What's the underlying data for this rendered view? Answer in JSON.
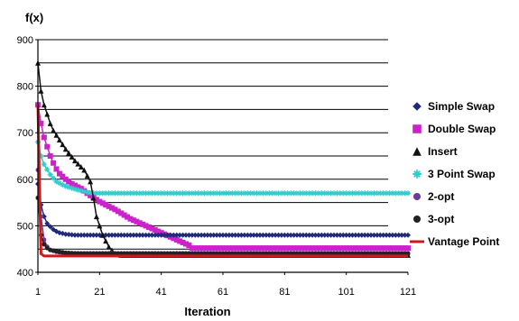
{
  "chart_data": {
    "type": "line",
    "ylabel": "f(x)",
    "xlabel": "Iteration",
    "ylim": [
      400,
      900
    ],
    "xlim": [
      1,
      121
    ],
    "yticks": [
      400,
      500,
      600,
      700,
      800,
      900
    ],
    "ytick_labels": [
      "400",
      "500",
      "600",
      "700",
      "800",
      "900"
    ],
    "xticks": [
      1,
      21,
      41,
      61,
      81,
      101,
      121
    ],
    "xtick_labels": [
      "1",
      "21",
      "41",
      "61",
      "81",
      "101",
      "121"
    ],
    "grid": "horizontal",
    "legend_position": "right",
    "series": [
      {
        "name": "Simple Swap",
        "color": "#1f2a7a",
        "marker": "diamond",
        "points": [
          [
            1,
            590
          ],
          [
            2,
            545
          ],
          [
            3,
            520
          ],
          [
            4,
            505
          ],
          [
            5,
            498
          ],
          [
            6,
            492
          ],
          [
            7,
            488
          ],
          [
            8,
            485
          ],
          [
            10,
            482
          ],
          [
            13,
            480
          ],
          [
            121,
            480
          ]
        ]
      },
      {
        "name": "Double Swap",
        "color": "#cc22cc",
        "marker": "square",
        "points": [
          [
            1,
            760
          ],
          [
            2,
            720
          ],
          [
            3,
            690
          ],
          [
            4,
            670
          ],
          [
            5,
            650
          ],
          [
            6,
            635
          ],
          [
            7,
            622
          ],
          [
            8,
            612
          ],
          [
            10,
            600
          ],
          [
            12,
            590
          ],
          [
            15,
            580
          ],
          [
            18,
            565
          ],
          [
            21,
            552
          ],
          [
            26,
            535
          ],
          [
            31,
            515
          ],
          [
            36,
            500
          ],
          [
            41,
            485
          ],
          [
            46,
            470
          ],
          [
            50,
            458
          ],
          [
            51,
            452
          ],
          [
            121,
            452
          ]
        ]
      },
      {
        "name": "Insert",
        "color": "#111111",
        "marker": "triangle",
        "points": [
          [
            1,
            850
          ],
          [
            2,
            790
          ],
          [
            3,
            760
          ],
          [
            4,
            740
          ],
          [
            5,
            720
          ],
          [
            6,
            705
          ],
          [
            8,
            685
          ],
          [
            10,
            665
          ],
          [
            13,
            640
          ],
          [
            16,
            620
          ],
          [
            18,
            595
          ],
          [
            19,
            560
          ],
          [
            20,
            520
          ],
          [
            22,
            480
          ],
          [
            24,
            455
          ],
          [
            26,
            440
          ],
          [
            28,
            437
          ],
          [
            121,
            437
          ]
        ]
      },
      {
        "name": "3 Point Swap",
        "color": "#33cccc",
        "marker": "star",
        "points": [
          [
            1,
            680
          ],
          [
            2,
            650
          ],
          [
            3,
            632
          ],
          [
            5,
            610
          ],
          [
            7,
            595
          ],
          [
            10,
            585
          ],
          [
            14,
            577
          ],
          [
            17,
            572
          ],
          [
            19,
            570
          ],
          [
            121,
            570
          ]
        ]
      },
      {
        "name": "2-opt",
        "color": "#6a3a9a",
        "marker": "hexagon",
        "points": [
          [
            1,
            620
          ],
          [
            2,
            520
          ],
          [
            3,
            470
          ],
          [
            4,
            455
          ],
          [
            5,
            448
          ],
          [
            7,
            444
          ],
          [
            10,
            441
          ],
          [
            121,
            441
          ]
        ]
      },
      {
        "name": "3-opt",
        "color": "#222222",
        "marker": "circle",
        "points": [
          [
            1,
            560
          ],
          [
            2,
            480
          ],
          [
            3,
            460
          ],
          [
            4,
            452
          ],
          [
            5,
            448
          ],
          [
            7,
            445
          ],
          [
            10,
            442
          ],
          [
            15,
            440
          ],
          [
            121,
            440
          ]
        ]
      },
      {
        "name": "Vantage Point",
        "color": "#cc1a1a",
        "marker": "line",
        "points": [
          [
            1,
            760
          ],
          [
            2,
            440
          ],
          [
            3,
            435
          ],
          [
            121,
            435
          ]
        ]
      }
    ]
  }
}
